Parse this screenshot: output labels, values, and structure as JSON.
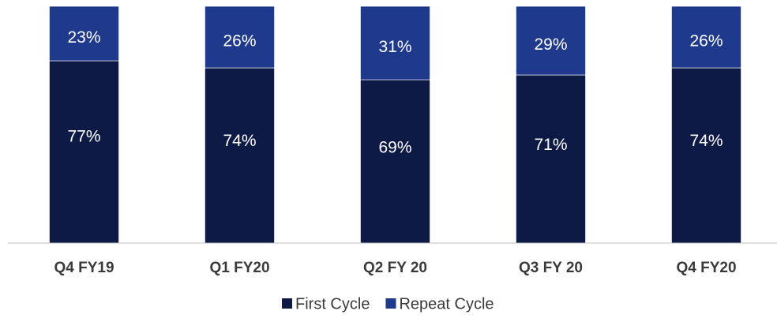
{
  "chart_data": {
    "type": "bar",
    "stacked": true,
    "categories": [
      "Q4 FY19",
      "Q1 FY20",
      "Q2 FY 20",
      "Q3 FY 20",
      "Q4 FY20"
    ],
    "series": [
      {
        "name": "First Cycle",
        "color": "#0e1a46",
        "values": [
          77,
          74,
          69,
          71,
          74
        ],
        "value_labels": [
          "77%",
          "74%",
          "69%",
          "71%",
          "74%"
        ]
      },
      {
        "name": "Repeat Cycle",
        "color": "#1f3a8c",
        "values": [
          23,
          26,
          31,
          29,
          26
        ],
        "value_labels": [
          "23%",
          "26%",
          "31%",
          "29%",
          "26%"
        ]
      }
    ],
    "ylim": [
      0,
      100
    ],
    "legend": "bottom"
  }
}
